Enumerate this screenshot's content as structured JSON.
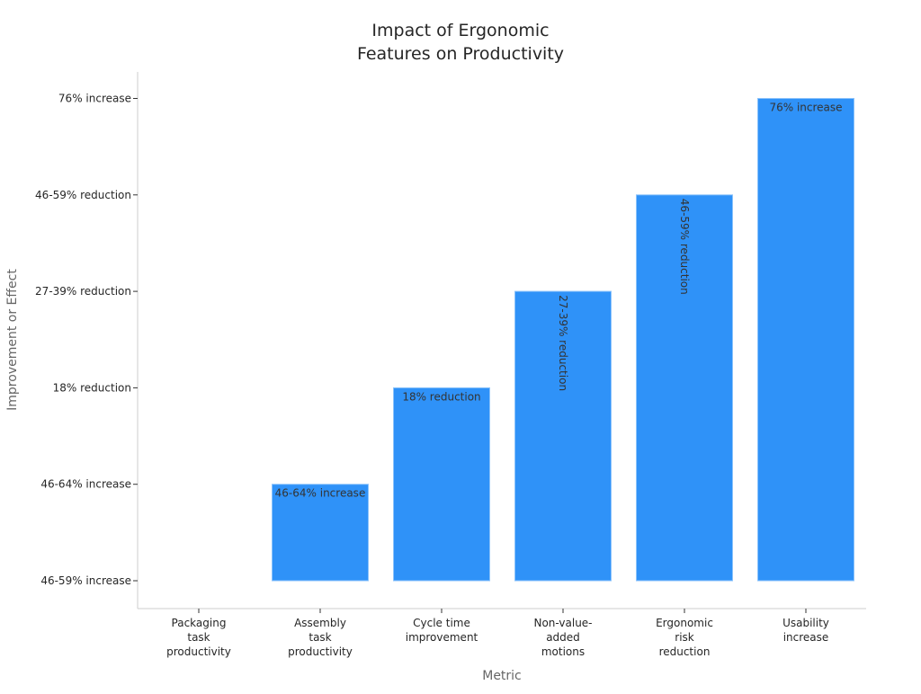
{
  "chart_data": {
    "type": "bar",
    "title": [
      "Impact of Ergonomic",
      "Features on Productivity"
    ],
    "xlabel": "Metric",
    "ylabel": "Improvement or Effect",
    "categories": [
      [
        "Packaging",
        "task",
        "productivity"
      ],
      [
        "Assembly",
        "task",
        "productivity"
      ],
      [
        "Cycle time",
        "improvement"
      ],
      [
        "Non-value-",
        "added",
        "motions"
      ],
      [
        "Ergonomic",
        "risk",
        "reduction"
      ],
      [
        "Usability",
        "increase"
      ]
    ],
    "y_categories": [
      "46-59% increase",
      "46-64% increase",
      "18% reduction",
      "27-39% reduction",
      "46-59% reduction",
      "76% increase"
    ],
    "values": [
      "46-59% increase",
      "46-64% increase",
      "18% reduction",
      "27-39% reduction",
      "46-59% reduction",
      "76% increase"
    ],
    "data_labels": [
      "",
      "46-64% increase",
      "18% reduction",
      "27-39% reduction",
      "46-59% reduction",
      "76% increase"
    ],
    "data_label_rotated": [
      false,
      false,
      false,
      true,
      true,
      false
    ],
    "bar_color": "#2f92f8",
    "bar_edge_color": "#8cc3fb",
    "grid": false,
    "legend": "none"
  }
}
